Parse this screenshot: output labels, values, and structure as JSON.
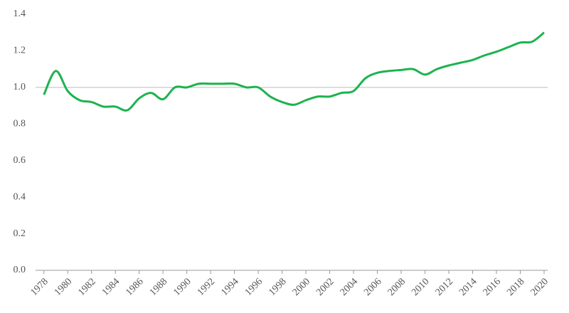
{
  "chart_data": {
    "type": "line",
    "x": [
      1978,
      1979,
      1980,
      1981,
      1982,
      1983,
      1984,
      1985,
      1986,
      1987,
      1988,
      1989,
      1990,
      1991,
      1992,
      1993,
      1994,
      1995,
      1996,
      1997,
      1998,
      1999,
      2000,
      2001,
      2002,
      2003,
      2004,
      2005,
      2006,
      2007,
      2008,
      2009,
      2010,
      2011,
      2012,
      2013,
      2014,
      2015,
      2016,
      2017,
      2018,
      2019,
      2020
    ],
    "series": [
      {
        "color": "#1db34f",
        "values": [
          0.96,
          1.09,
          0.98,
          0.93,
          0.92,
          0.895,
          0.895,
          0.875,
          0.94,
          0.97,
          0.935,
          1.0,
          1.0,
          1.02,
          1.02,
          1.02,
          1.02,
          1.0,
          1.0,
          0.95,
          0.92,
          0.905,
          0.93,
          0.95,
          0.95,
          0.97,
          0.98,
          1.05,
          1.08,
          1.09,
          1.095,
          1.1,
          1.07,
          1.1,
          1.12,
          1.135,
          1.15,
          1.175,
          1.195,
          1.22,
          1.245,
          1.25,
          1.3
        ]
      }
    ],
    "xlim": [
      1977.3,
      2020.3
    ],
    "xticks": [
      1978,
      1980,
      1982,
      1984,
      1986,
      1988,
      1990,
      1992,
      1994,
      1996,
      1998,
      2000,
      2002,
      2004,
      2006,
      2008,
      2010,
      2012,
      2014,
      2016,
      2018,
      2020
    ],
    "ylim": [
      0,
      1.4
    ],
    "yticks": [
      {
        "value": 0,
        "label": "0.0"
      },
      0.2,
      0.4,
      0.6,
      0.8,
      {
        "value": 1,
        "label": "1.0"
      },
      1.2,
      1.4
    ],
    "reference_line": 1
  }
}
